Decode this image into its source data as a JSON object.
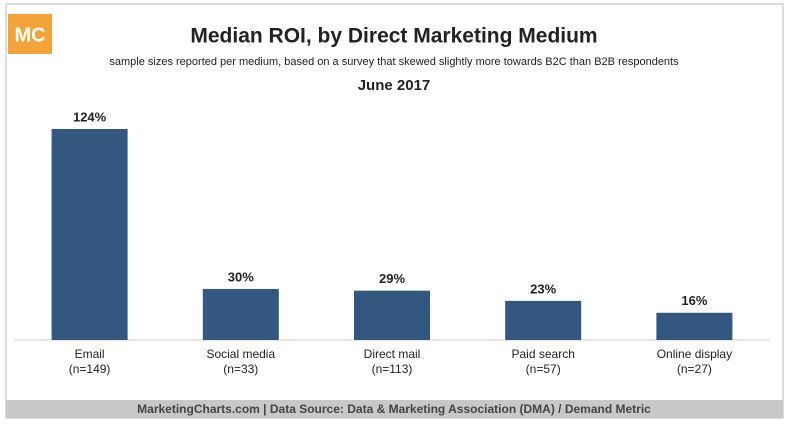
{
  "logo": "MC",
  "chart_data": {
    "type": "bar",
    "title": "Median ROI, by Direct Marketing Medium",
    "subtitle": "sample sizes reported per medium, based on a survey that skewed slightly more towards B2C than B2B respondents",
    "date": "June 2017",
    "categories": [
      "Email",
      "Social media",
      "Direct mail",
      "Paid search",
      "Online display"
    ],
    "category_notes": [
      "(n=149)",
      "(n=33)",
      "(n=113)",
      "(n=57)",
      "(n=27)"
    ],
    "values": [
      124,
      30,
      29,
      23,
      16
    ],
    "value_labels": [
      "124%",
      "30%",
      "29%",
      "23%",
      "16%"
    ],
    "color": "#33577e",
    "source": "MarketingCharts.com | Data Source: Data & Marketing Association (DMA) / Demand Metric"
  }
}
